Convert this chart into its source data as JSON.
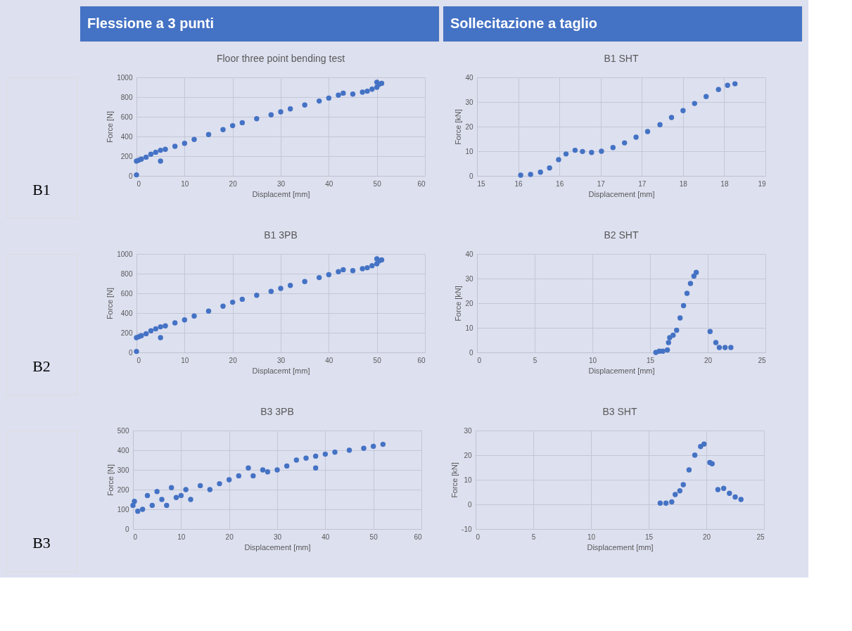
{
  "chart_data": [
    {
      "type": "scatter",
      "title": "Floor three point bending test",
      "xlabel": "Displacemt [mm]",
      "ylabel": "Force [N]",
      "annotations": [
        "Flessione a 3 punti",
        "B1"
      ],
      "marker": "circle",
      "grid": true,
      "xlim": [
        0,
        60
      ],
      "xticks": [
        0,
        10,
        20,
        30,
        40,
        50,
        60
      ],
      "ylim": [
        0,
        1000
      ],
      "yticks": [
        0,
        200,
        400,
        600,
        800,
        1000
      ],
      "series": [
        {
          "color": "#4472c4",
          "x": [
            0,
            0,
            0.5,
            1,
            2,
            3,
            4,
            5,
            5,
            6,
            8,
            10,
            12,
            15,
            18,
            20,
            22,
            25,
            28,
            30,
            32,
            35,
            38,
            40,
            42,
            43,
            45,
            47,
            48,
            49,
            50,
            50,
            50.5,
            51
          ],
          "values": [
            10,
            150,
            160,
            170,
            190,
            220,
            240,
            150,
            260,
            270,
            300,
            330,
            370,
            420,
            470,
            510,
            540,
            580,
            620,
            650,
            680,
            720,
            760,
            790,
            820,
            840,
            830,
            850,
            860,
            880,
            900,
            950,
            930,
            940
          ]
        }
      ]
    },
    {
      "type": "scatter",
      "title": "B1 SHT",
      "xlabel": "Displacement [mm]",
      "ylabel": "Force [kN]",
      "annotations": [
        "Sollecitazione a taglio"
      ],
      "marker": "circle",
      "grid": true,
      "xlim": [
        15,
        18.5
      ],
      "xticks": [
        15,
        {
          "value": 15.5,
          "label": "16"
        },
        16,
        {
          "value": 16.5,
          "label": "17"
        },
        17,
        {
          "value": 17.5,
          "label": "18"
        },
        18,
        {
          "value": 18.5,
          "label": "19"
        }
      ],
      "ylim": [
        0,
        40
      ],
      "yticks": [
        0,
        10,
        20,
        30,
        40
      ],
      "series": [
        {
          "color": "#4472c4",
          "x": [
            15.53,
            15.65,
            15.77,
            15.88,
            15.99,
            16.08,
            16.19,
            16.28,
            16.39,
            16.51,
            16.65,
            16.79,
            16.93,
            17.07,
            17.22,
            17.36,
            17.5,
            17.64,
            17.78,
            17.93,
            18.04,
            18.13
          ],
          "values": [
            0.3,
            0.6,
            1.5,
            3.2,
            6.6,
            8.9,
            10.4,
            9.9,
            9.5,
            10.0,
            11.5,
            13.4,
            15.7,
            18.0,
            20.8,
            23.7,
            26.5,
            29.4,
            32.2,
            35.1,
            36.8,
            37.4
          ]
        }
      ]
    },
    {
      "type": "scatter",
      "title": "B1 3PB",
      "xlabel": "Displacemt [mm]",
      "ylabel": "Force [N]",
      "annotations": [
        "B2"
      ],
      "marker": "circle",
      "grid": true,
      "xlim": [
        0,
        60
      ],
      "xticks": [
        0,
        10,
        20,
        30,
        40,
        50,
        60
      ],
      "ylim": [
        0,
        1000
      ],
      "yticks": [
        0,
        200,
        400,
        600,
        800,
        1000
      ],
      "series": [
        {
          "color": "#4472c4",
          "x": [
            0,
            0,
            0.5,
            1,
            2,
            3,
            4,
            5,
            5,
            6,
            8,
            10,
            12,
            15,
            18,
            20,
            22,
            25,
            28,
            30,
            32,
            35,
            38,
            40,
            42,
            43,
            45,
            47,
            48,
            49,
            50,
            50,
            50.5,
            51
          ],
          "values": [
            10,
            150,
            160,
            170,
            190,
            220,
            240,
            150,
            260,
            270,
            300,
            330,
            370,
            420,
            470,
            510,
            540,
            580,
            620,
            650,
            680,
            720,
            760,
            790,
            820,
            840,
            830,
            850,
            860,
            880,
            900,
            950,
            930,
            940
          ]
        }
      ]
    },
    {
      "type": "scatter",
      "title": "B2 SHT",
      "xlabel": "Displacement [mm]",
      "ylabel": "Force [kN]",
      "marker": "circle",
      "grid": true,
      "xlim": [
        0,
        25
      ],
      "xticks": [
        0,
        5,
        10,
        15,
        20,
        25
      ],
      "ylim": [
        0,
        40
      ],
      "yticks": [
        0,
        10,
        20,
        30,
        40
      ],
      "series": [
        {
          "color": "#4472c4",
          "x": [
            15.5,
            15.8,
            16.1,
            16.5,
            16.6,
            16.7,
            17,
            17.3,
            17.6,
            17.9,
            18.2,
            18.5,
            18.8,
            19,
            20.2,
            20.7,
            21,
            21.5,
            22
          ],
          "values": [
            0,
            0.5,
            0.5,
            1,
            4,
            6,
            7,
            9,
            14,
            19,
            24,
            28,
            31,
            32.5,
            8.5,
            4,
            2,
            2,
            2
          ]
        }
      ]
    },
    {
      "type": "scatter",
      "title": "B3 3PB",
      "xlabel": "Displacement [mm]",
      "ylabel": "Force [N]",
      "annotations": [
        "B3"
      ],
      "marker": "circle",
      "grid": true,
      "xlim": [
        0,
        60
      ],
      "xticks": [
        0,
        10,
        20,
        30,
        40,
        50,
        60
      ],
      "ylim": [
        0,
        500
      ],
      "yticks": [
        0,
        100,
        200,
        300,
        400,
        500
      ],
      "series": [
        {
          "color": "#4472c4",
          "x": [
            0,
            0.3,
            1,
            2,
            3,
            4,
            5,
            6,
            7,
            8,
            9,
            10,
            11,
            12,
            14,
            16,
            18,
            20,
            22,
            24,
            25,
            27,
            28,
            30,
            32,
            34,
            36,
            38,
            38,
            40,
            42,
            45,
            48,
            50,
            52
          ],
          "values": [
            120,
            140,
            90,
            100,
            170,
            120,
            190,
            150,
            120,
            210,
            160,
            170,
            200,
            150,
            220,
            200,
            230,
            250,
            270,
            310,
            270,
            300,
            290,
            300,
            320,
            350,
            360,
            310,
            370,
            380,
            390,
            400,
            410,
            420,
            430
          ]
        }
      ]
    },
    {
      "type": "scatter",
      "title": "B3 SHT",
      "xlabel": "Displacement [mm]",
      "ylabel": "Force [kN]",
      "marker": "circle",
      "grid": true,
      "xlim": [
        0,
        25
      ],
      "xticks": [
        0,
        5,
        10,
        15,
        20,
        25
      ],
      "ylim": [
        -10,
        30
      ],
      "yticks": [
        -10,
        0,
        10,
        20,
        30
      ],
      "series": [
        {
          "color": "#4472c4",
          "x": [
            16,
            16.5,
            17,
            17.3,
            17.7,
            18,
            18.5,
            19,
            19.5,
            19.8,
            20.3,
            20.5,
            21,
            21.5,
            22,
            22.5,
            23
          ],
          "values": [
            0.5,
            0.5,
            1,
            4,
            5.5,
            8,
            14,
            20,
            23.5,
            24.5,
            17,
            16.5,
            6,
            6.5,
            4.5,
            3,
            2
          ]
        }
      ]
    }
  ]
}
